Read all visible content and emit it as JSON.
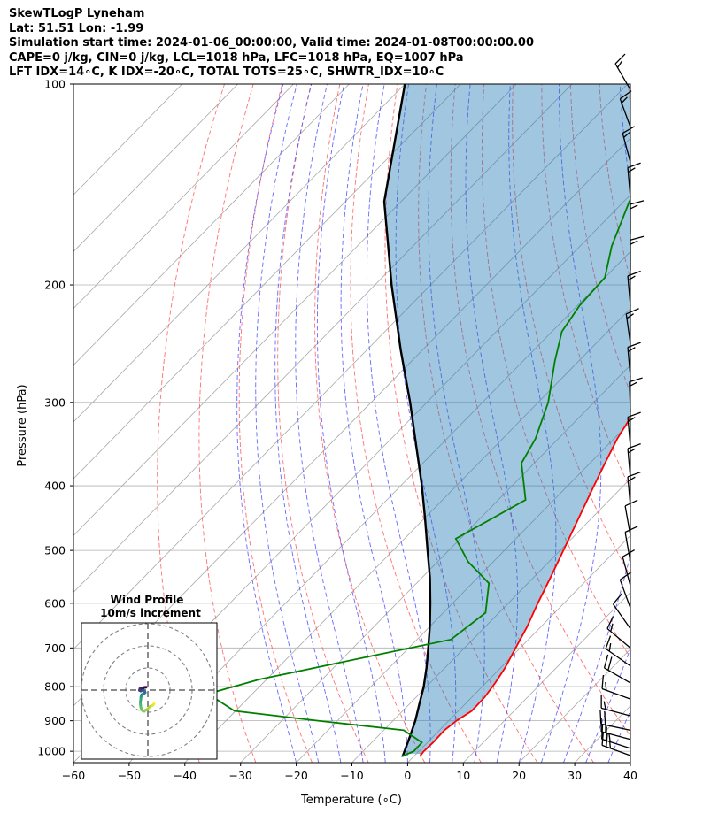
{
  "header": {
    "line1": "SkewTLogP Lyneham",
    "line2": "Lat: 51.51   Lon: -1.99",
    "line3": "Simulation start time: 2024-01-06_00:00:00, Valid time: 2024-01-08T00:00:00.00",
    "line4": "CAPE=0 j/kg, CIN=0 j/kg, LCL=1018 hPa, LFC=1018 hPa, EQ=1007 hPa",
    "line5": "LFT IDX=14∘C, K IDX=-20∘C, TOTAL TOTS=25∘C, SHWTR_IDX=10∘C"
  },
  "chart_data": [
    {
      "type": "line",
      "subtype": "skew-t log-p",
      "xlabel": "Temperature (∘C)",
      "ylabel": "Pressure (hPa)",
      "xlim": [
        -60,
        40
      ],
      "ylim": [
        1040,
        100
      ],
      "yscale": "log",
      "x_ticks": [
        "−60",
        "−50",
        "−40",
        "−30",
        "−20",
        "−10",
        "0",
        "10",
        "20",
        "30",
        "40"
      ],
      "y_ticks": [
        "100",
        "200",
        "300",
        "400",
        "500",
        "600",
        "700",
        "800",
        "900",
        "1000"
      ],
      "grid": true,
      "series": [
        {
          "role": "temperature",
          "color": "#ff0000",
          "points": [
            [
              1018,
              1.1
            ],
            [
              1000,
              0.9
            ],
            [
              970,
              1.0
            ],
            [
              930,
              0.9
            ],
            [
              900,
              1.4
            ],
            [
              870,
              2.4
            ],
            [
              830,
              2.3
            ],
            [
              790,
              1.7
            ],
            [
              750,
              0.8
            ],
            [
              700,
              -0.8
            ],
            [
              650,
              -2.5
            ],
            [
              600,
              -4.7
            ],
            [
              550,
              -6.9
            ],
            [
              500,
              -9.4
            ],
            [
              450,
              -12.2
            ],
            [
              400,
              -15.3
            ],
            [
              370,
              -17.3
            ],
            [
              340,
              -19.4
            ],
            [
              315,
              -20.8
            ],
            [
              300,
              -21.6
            ],
            [
              280,
              -22.9
            ],
            [
              250,
              -25.7
            ],
            [
              220,
              -28.8
            ],
            [
              200,
              -31.2
            ],
            [
              180,
              -33.4
            ],
            [
              160,
              -36.2
            ],
            [
              140,
              -40.6
            ],
            [
              120,
              -44.6
            ],
            [
              110,
              -46.3
            ],
            [
              100,
              -48.3
            ]
          ]
        },
        {
          "role": "dewpoint",
          "color": "#008000",
          "points": [
            [
              1018,
              -2.2
            ],
            [
              1000,
              -0.9
            ],
            [
              970,
              -1.0
            ],
            [
              930,
              -6.4
            ],
            [
              900,
              -23.5
            ],
            [
              870,
              -40.2
            ],
            [
              820,
              -48.0
            ],
            [
              780,
              -41.2
            ],
            [
              720,
              -25.4
            ],
            [
              680,
              -13.9
            ],
            [
              620,
              -12.4
            ],
            [
              560,
              -17.0
            ],
            [
              520,
              -24.5
            ],
            [
              480,
              -30.8
            ],
            [
              420,
              -25.1
            ],
            [
              370,
              -32.3
            ],
            [
              340,
              -34.1
            ],
            [
              300,
              -38.2
            ],
            [
              260,
              -44.3
            ],
            [
              235,
              -48.2
            ],
            [
              215,
              -49.6
            ],
            [
              195,
              -50.0
            ],
            [
              175,
              -54.3
            ],
            [
              150,
              -59.0
            ],
            [
              125,
              -63.5
            ],
            [
              100,
              -70.2
            ]
          ]
        },
        {
          "role": "parcel",
          "color": "#000000",
          "points": [
            [
              1018,
              -2.0
            ],
            [
              950,
              -4.2
            ],
            [
              900,
              -6.0
            ],
            [
              850,
              -8.2
            ],
            [
              800,
              -10.5
            ],
            [
              750,
              -13.3
            ],
            [
              700,
              -16.5
            ],
            [
              650,
              -20.0
            ],
            [
              600,
              -24.0
            ],
            [
              550,
              -28.5
            ],
            [
              500,
              -33.8
            ],
            [
              450,
              -39.6
            ],
            [
              400,
              -46.2
            ],
            [
              350,
              -54.0
            ],
            [
              300,
              -63.0
            ],
            [
              250,
              -74.0
            ],
            [
              200,
              -87.0
            ],
            [
              150,
              -103.0
            ],
            [
              100,
              -120.0
            ]
          ]
        }
      ],
      "wind_barbs": [
        {
          "p": 1015,
          "speed_kt": 28,
          "dir_deg": 290
        },
        {
          "p": 990,
          "speed_kt": 25,
          "dir_deg": 288
        },
        {
          "p": 960,
          "speed_kt": 22,
          "dir_deg": 285
        },
        {
          "p": 930,
          "speed_kt": 20,
          "dir_deg": 282
        },
        {
          "p": 885,
          "speed_kt": 18,
          "dir_deg": 285
        },
        {
          "p": 835,
          "speed_kt": 15,
          "dir_deg": 290
        },
        {
          "p": 790,
          "speed_kt": 20,
          "dir_deg": 300
        },
        {
          "p": 745,
          "speed_kt": 15,
          "dir_deg": 305
        },
        {
          "p": 700,
          "speed_kt": 15,
          "dir_deg": 310
        },
        {
          "p": 655,
          "speed_kt": 10,
          "dir_deg": 325
        },
        {
          "p": 610,
          "speed_kt": 10,
          "dir_deg": 340
        },
        {
          "p": 565,
          "speed_kt": 10,
          "dir_deg": 345
        },
        {
          "p": 520,
          "speed_kt": 12,
          "dir_deg": 350
        },
        {
          "p": 475,
          "speed_kt": 12,
          "dir_deg": 350
        },
        {
          "p": 430,
          "speed_kt": 15,
          "dir_deg": 355
        },
        {
          "p": 390,
          "speed_kt": 15,
          "dir_deg": 355
        },
        {
          "p": 350,
          "speed_kt": 15,
          "dir_deg": 355
        },
        {
          "p": 310,
          "speed_kt": 15,
          "dir_deg": 358
        },
        {
          "p": 275,
          "speed_kt": 15,
          "dir_deg": 355
        },
        {
          "p": 245,
          "speed_kt": 15,
          "dir_deg": 352
        },
        {
          "p": 215,
          "speed_kt": 15,
          "dir_deg": 355
        },
        {
          "p": 190,
          "speed_kt": 15,
          "dir_deg": 360
        },
        {
          "p": 168,
          "speed_kt": 15,
          "dir_deg": 360
        },
        {
          "p": 148,
          "speed_kt": 15,
          "dir_deg": 355
        },
        {
          "p": 131,
          "speed_kt": 15,
          "dir_deg": 345
        },
        {
          "p": 116,
          "speed_kt": 15,
          "dir_deg": 340
        },
        {
          "p": 102,
          "speed_kt": 15,
          "dir_deg": 330
        }
      ]
    },
    {
      "type": "scatter",
      "subtype": "hodograph",
      "title": "Wind Profile",
      "subtitle": "10m/s increment",
      "ring_increment_ms": 10,
      "rings": 3,
      "points": [
        [
          2.8,
          -6.2
        ],
        [
          2.1,
          -6.9
        ],
        [
          1.2,
          -7.3
        ],
        [
          0.8,
          -7.6
        ],
        [
          -0.4,
          -8.8
        ],
        [
          -1.9,
          -9.5
        ],
        [
          -2.8,
          -8.9
        ],
        [
          -3.2,
          -7.6
        ],
        [
          -3.3,
          -6.8
        ],
        [
          -3.4,
          -5.5
        ],
        [
          -3.2,
          -4.3
        ],
        [
          -3.1,
          -3.1
        ],
        [
          -2.9,
          -2.4
        ],
        [
          -2.7,
          -2.0
        ],
        [
          -1.8,
          -1.6
        ],
        [
          -1.2,
          -1.1
        ],
        [
          -1.5,
          -0.6
        ],
        [
          -1.8,
          -0.2
        ],
        [
          -2.4,
          0.0
        ],
        [
          -3.2,
          -0.4
        ],
        [
          -3.8,
          -0.1
        ],
        [
          -3.6,
          0.6
        ],
        [
          -3.1,
          0.8
        ],
        [
          -2.5,
          0.9
        ],
        [
          -2.0,
          1.0
        ],
        [
          -1.5,
          1.2
        ],
        [
          -0.8,
          1.3
        ]
      ],
      "colormap": [
        "#fde725",
        "#5ec962",
        "#21918c",
        "#3b528b",
        "#440154"
      ]
    }
  ]
}
